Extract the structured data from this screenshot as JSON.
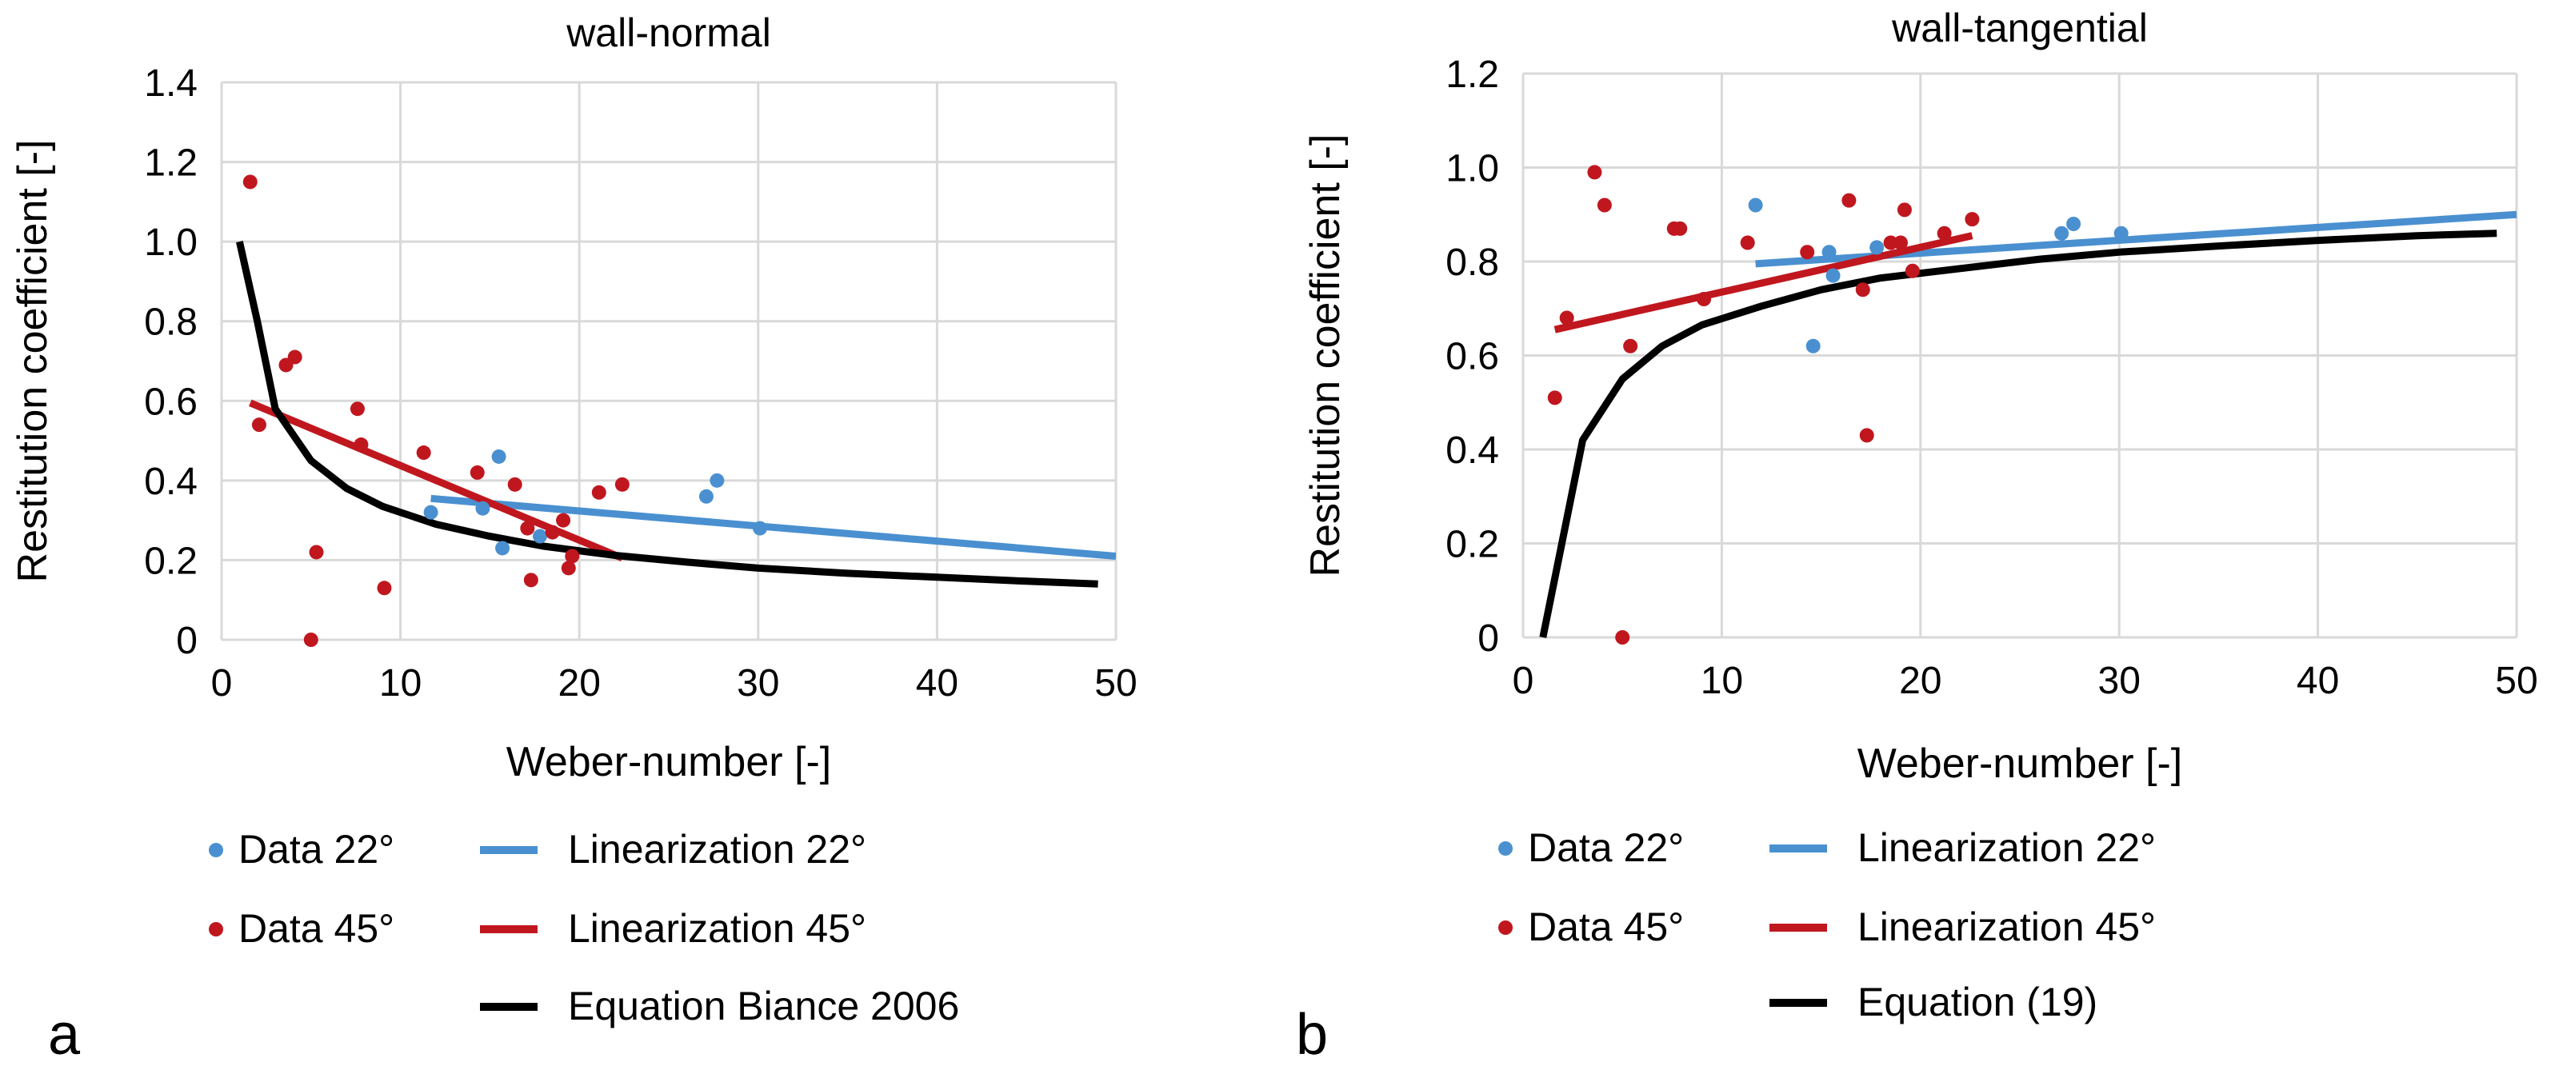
{
  "chart_data": [
    {
      "type": "scatter",
      "panel_label": "a",
      "title": "wall-normal",
      "xlabel": "Weber-number [-]",
      "ylabel": "Restitution coefficient [-]",
      "xlim": [
        0,
        50
      ],
      "ylim": [
        0,
        1.4
      ],
      "xticks": [
        0,
        10,
        20,
        30,
        40,
        50
      ],
      "xtick_labels": [
        "0",
        "10",
        "20",
        "30",
        "40",
        "50"
      ],
      "yticks": [
        0,
        0.2,
        0.4,
        0.6,
        0.8,
        1.0,
        1.2,
        1.4
      ],
      "ytick_labels": [
        "0",
        "0.2",
        "0.4",
        "0.6",
        "0.8",
        "1.0",
        "1.2",
        "1.4"
      ],
      "grid": true,
      "legend_position": "bottom",
      "series": [
        {
          "name": "Data 22°",
          "kind": "scatter",
          "color": "#4a90d0",
          "x": [
            11.7,
            14.6,
            15.5,
            15.7,
            17.8,
            27.1,
            27.7,
            30.1
          ],
          "y": [
            0.32,
            0.33,
            0.46,
            0.23,
            0.26,
            0.36,
            0.4,
            0.28
          ]
        },
        {
          "name": "Data 45°",
          "kind": "scatter",
          "color": "#c0171f",
          "x": [
            1.6,
            2.1,
            3.6,
            4.1,
            5.0,
            5.3,
            7.6,
            7.8,
            9.1,
            11.3,
            14.3,
            16.4,
            17.1,
            17.3,
            18.5,
            19.1,
            19.4,
            19.6,
            21.1,
            22.4
          ],
          "y": [
            1.15,
            0.54,
            0.69,
            0.71,
            0.0,
            0.22,
            0.58,
            0.49,
            0.13,
            0.47,
            0.42,
            0.39,
            0.28,
            0.15,
            0.27,
            0.3,
            0.18,
            0.21,
            0.37,
            0.39
          ]
        },
        {
          "name": "Linearization 22°",
          "kind": "line",
          "color": "#4a90d0",
          "x": [
            11.7,
            50
          ],
          "y": [
            0.355,
            0.21
          ]
        },
        {
          "name": "Linearization 45°",
          "kind": "line",
          "color": "#c0171f",
          "x": [
            1.6,
            22.4
          ],
          "y": [
            0.595,
            0.205
          ]
        },
        {
          "name": "Equation Biance 2006",
          "kind": "line",
          "color": "#000000",
          "x": [
            1,
            2,
            3,
            5,
            7,
            9,
            12,
            15,
            18,
            22,
            26,
            30,
            35,
            40,
            45,
            49
          ],
          "y": [
            1.0,
            0.8,
            0.58,
            0.45,
            0.38,
            0.335,
            0.29,
            0.26,
            0.235,
            0.212,
            0.195,
            0.18,
            0.167,
            0.157,
            0.147,
            0.14
          ]
        }
      ]
    },
    {
      "type": "scatter",
      "panel_label": "b",
      "title": "wall-tangential",
      "xlabel": "Weber-number [-]",
      "ylabel": "Restitution coefficient [-]",
      "xlim": [
        0,
        50
      ],
      "ylim": [
        0,
        1.2
      ],
      "xticks": [
        0,
        10,
        20,
        30,
        40,
        50
      ],
      "xtick_labels": [
        "0",
        "10",
        "20",
        "30",
        "40",
        "50"
      ],
      "yticks": [
        0,
        0.2,
        0.4,
        0.6,
        0.8,
        1.0,
        1.2
      ],
      "ytick_labels": [
        "0",
        "0.2",
        "0.4",
        "0.6",
        "0.8",
        "1.0",
        "1.2"
      ],
      "grid": true,
      "legend_position": "bottom",
      "series": [
        {
          "name": "Data 22°",
          "kind": "scatter",
          "color": "#4a90d0",
          "x": [
            11.7,
            14.6,
            15.4,
            15.6,
            17.8,
            27.1,
            27.7,
            30.1
          ],
          "y": [
            0.92,
            0.62,
            0.82,
            0.77,
            0.83,
            0.86,
            0.88,
            0.86
          ]
        },
        {
          "name": "Data 45°",
          "kind": "scatter",
          "color": "#c0171f",
          "x": [
            1.6,
            2.2,
            3.6,
            4.1,
            5.0,
            5.4,
            7.6,
            7.9,
            9.1,
            11.3,
            14.3,
            16.4,
            17.1,
            17.3,
            18.5,
            19.0,
            19.2,
            19.6,
            21.2,
            22.6
          ],
          "y": [
            0.51,
            0.68,
            0.99,
            0.92,
            0.0,
            0.62,
            0.87,
            0.87,
            0.72,
            0.84,
            0.82,
            0.93,
            0.74,
            0.43,
            0.84,
            0.84,
            0.91,
            0.78,
            0.86,
            0.89
          ]
        },
        {
          "name": "Linearization 22°",
          "kind": "line",
          "color": "#4a90d0",
          "x": [
            11.7,
            50
          ],
          "y": [
            0.795,
            0.9
          ]
        },
        {
          "name": "Linearization 45°",
          "kind": "line",
          "color": "#c0171f",
          "x": [
            1.6,
            22.6
          ],
          "y": [
            0.655,
            0.855
          ]
        },
        {
          "name": "Equation (19)",
          "kind": "line",
          "color": "#000000",
          "x": [
            1,
            3,
            5,
            7,
            9,
            12,
            15,
            18,
            22,
            26,
            30,
            35,
            40,
            45,
            49
          ],
          "y": [
            0.0,
            0.42,
            0.55,
            0.62,
            0.665,
            0.705,
            0.74,
            0.765,
            0.785,
            0.805,
            0.82,
            0.833,
            0.845,
            0.855,
            0.86
          ]
        }
      ]
    }
  ]
}
